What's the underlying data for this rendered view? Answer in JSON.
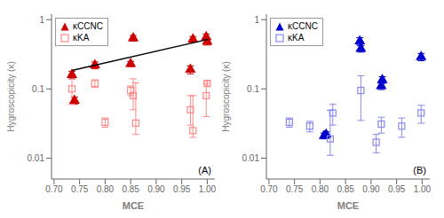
{
  "chart_data": [
    {
      "type": "scatter",
      "annotation": "(A)",
      "xlabel": "MCE",
      "ylabel": "Hygroscopicity (κ)",
      "xlim": [
        0.695,
        1.015
      ],
      "xticks": [
        {
          "value": 0.7,
          "label": "0.70"
        },
        0.75,
        {
          "value": 0.8,
          "label": "0.80"
        },
        0.85,
        {
          "value": 0.9,
          "label": "0.90"
        },
        0.95,
        {
          "value": 1.0,
          "label": "1.00"
        }
      ],
      "ylim": [
        0.005,
        1.2
      ],
      "yticks": [
        0.01,
        0.1,
        1
      ],
      "log": "y",
      "grid": false,
      "legend": "upper left",
      "series": [
        {
          "name": "κCCNC",
          "type": "scatter",
          "marker": "triangle",
          "color": "#CC0000",
          "x": [
            0.735,
            0.74,
            0.78,
            0.85,
            0.855,
            0.967,
            0.972,
            0.998,
            1.0
          ],
          "values": [
            0.16,
            0.068,
            0.22,
            0.23,
            0.54,
            0.19,
            0.52,
            0.56,
            0.48
          ],
          "yerr_lo": [
            0.02,
            0.008,
            0.025,
            0.02,
            0.05,
            0.025,
            0.05,
            0.05,
            0.05
          ],
          "yerr_hi": [
            0.02,
            0.008,
            0.025,
            0.02,
            0.05,
            0.025,
            0.05,
            0.06,
            0.05
          ]
        },
        {
          "name": "κKA",
          "type": "scatter",
          "marker": "square",
          "color": "#FF8888",
          "x": [
            0.735,
            0.78,
            0.8,
            0.85,
            0.855,
            0.86,
            0.967,
            0.972,
            0.998,
            1.0
          ],
          "values": [
            0.1,
            0.12,
            0.033,
            0.095,
            0.08,
            0.032,
            0.05,
            0.025,
            0.08,
            0.12
          ],
          "yerr_lo": [
            0.04,
            0.015,
            0.005,
            0.015,
            0.03,
            0.01,
            0.02,
            0.005,
            0.04,
            0.01
          ],
          "yerr_hi": [
            0.06,
            0.015,
            0.005,
            0.015,
            0.06,
            0.09,
            0.03,
            0.055,
            0.04,
            0.01
          ]
        },
        {
          "type": "line",
          "color": "black",
          "x": [
            0.735,
            1.002
          ],
          "values": [
            0.185,
            0.52
          ]
        }
      ]
    },
    {
      "type": "scatter",
      "annotation": "(B)",
      "xlabel": "MCE",
      "ylabel": "Hygroscopicity (κ)",
      "xlim": [
        0.695,
        1.015
      ],
      "xticks": [
        {
          "value": 0.7,
          "label": "0.70"
        },
        0.75,
        {
          "value": 0.8,
          "label": "0.80"
        },
        0.85,
        {
          "value": 0.9,
          "label": "0.90"
        },
        0.95,
        {
          "value": 1.0,
          "label": "1.00"
        }
      ],
      "ylim": [
        0.005,
        1.2
      ],
      "yticks": [
        0.01,
        0.1,
        1
      ],
      "log": "y",
      "grid": false,
      "legend": "upper left",
      "series": [
        {
          "name": "κCCNC",
          "type": "scatter",
          "marker": "triangle",
          "color": "#0000CC",
          "x": [
            0.808,
            0.812,
            0.878,
            0.88,
            0.92,
            0.922,
            0.998
          ],
          "values": [
            0.021,
            0.022,
            0.49,
            0.38,
            0.11,
            0.135,
            0.29
          ],
          "yerr_lo": [
            0.002,
            0.002,
            0.06,
            0.04,
            0.012,
            0.015,
            0.035
          ],
          "yerr_hi": [
            0.002,
            0.002,
            0.06,
            0.04,
            0.012,
            0.015,
            0.035
          ]
        },
        {
          "name": "κKA",
          "type": "scatter",
          "marker": "square",
          "color": "#8888EE",
          "x": [
            0.74,
            0.78,
            0.82,
            0.825,
            0.88,
            0.91,
            0.92,
            0.96,
            0.998
          ],
          "values": [
            0.033,
            0.029,
            0.019,
            0.045,
            0.095,
            0.017,
            0.031,
            0.029,
            0.045
          ],
          "yerr_lo": [
            0.005,
            0.005,
            0.008,
            0.015,
            0.06,
            0.005,
            0.008,
            0.009,
            0.013
          ],
          "yerr_hi": [
            0.005,
            0.005,
            0.03,
            0.015,
            0.06,
            0.005,
            0.008,
            0.009,
            0.013
          ]
        }
      ]
    }
  ]
}
